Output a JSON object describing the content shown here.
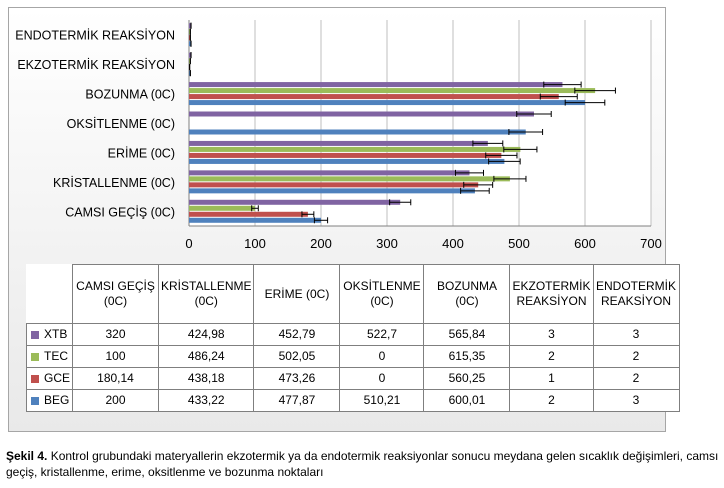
{
  "chart_data": {
    "type": "bar",
    "orientation": "horizontal",
    "categories": [
      "CAMSI GEÇİŞ (0C)",
      "KRİSTALLENME (0C)",
      "ERİME (0C)",
      "OKSİTLENME (0C)",
      "BOZUNMA (0C)",
      "EKZOTERMİK REAKSİYON",
      "ENDOTERMİK REAKSİYON"
    ],
    "series": [
      {
        "name": "XTB",
        "color": "#8064a2",
        "values": [
          320,
          424.98,
          452.79,
          522.7,
          565.84,
          3,
          3
        ]
      },
      {
        "name": "TEC",
        "color": "#9bbb59",
        "values": [
          100,
          486.24,
          502.05,
          0,
          615.35,
          2,
          2
        ]
      },
      {
        "name": "GCE",
        "color": "#c0504d",
        "values": [
          180.14,
          438.18,
          473.26,
          0,
          560.25,
          1,
          2
        ]
      },
      {
        "name": "BEG",
        "color": "#4f81bd",
        "values": [
          200,
          433.22,
          477.87,
          510.21,
          600.01,
          2,
          3
        ]
      }
    ],
    "error_bars": true,
    "xlim": [
      0,
      700
    ],
    "xticks": [
      0,
      100,
      200,
      300,
      400,
      500,
      600,
      700
    ],
    "grid": true,
    "legend": "data-table"
  },
  "table": {
    "headers": [
      "CAMSI GEÇİŞ (0C)",
      "KRİSTALLENME (0C)",
      "ERİME (0C)",
      "OKSİTLENME (0C)",
      "BOZUNMA (0C)",
      "EKZOTERMİK REAKSİYON",
      "ENDOTERMİK REAKSİYON"
    ],
    "rows": [
      {
        "name": "XTB",
        "color": "#8064a2",
        "cells": [
          "320",
          "424,98",
          "452,79",
          "522,7",
          "565,84",
          "3",
          "3"
        ]
      },
      {
        "name": "TEC",
        "color": "#9bbb59",
        "cells": [
          "100",
          "486,24",
          "502,05",
          "0",
          "615,35",
          "2",
          "2"
        ]
      },
      {
        "name": "GCE",
        "color": "#c0504d",
        "cells": [
          "180,14",
          "438,18",
          "473,26",
          "0",
          "560,25",
          "1",
          "2"
        ]
      },
      {
        "name": "BEG",
        "color": "#4f81bd",
        "cells": [
          "200",
          "433,22",
          "477,87",
          "510,21",
          "600,01",
          "2",
          "3"
        ]
      }
    ]
  },
  "caption": {
    "label": "Şekil 4.",
    "text": " Kontrol grubundaki materyallerin ekzotermik ya da endotermik reaksiyonlar sonucu meydana gelen sıcaklık değişimleri, camsı geçiş, kristallenme, erime, oksitlenme ve bozunma noktaları"
  }
}
